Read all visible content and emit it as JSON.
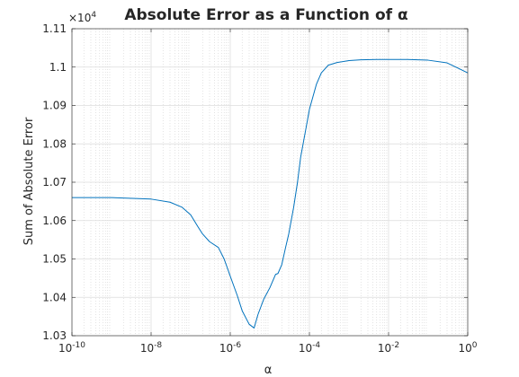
{
  "chart_data": {
    "type": "line",
    "title": "Absolute Error as a Function of α",
    "xlabel": "α",
    "ylabel": "Sum of Absolute Error",
    "xscale": "log",
    "xlim": [
      1e-10,
      1
    ],
    "ylim": [
      1.03,
      1.11
    ],
    "y_multiplier_label": "×10",
    "y_multiplier_exponent": "4",
    "grid": true,
    "minor_grid": true,
    "line_color": "#0072bd",
    "x_ticks": [
      {
        "value": 1e-10,
        "base": "10",
        "exp": "-10"
      },
      {
        "value": 1e-08,
        "base": "10",
        "exp": "-8"
      },
      {
        "value": 1e-06,
        "base": "10",
        "exp": "-6"
      },
      {
        "value": 0.0001,
        "base": "10",
        "exp": "-4"
      },
      {
        "value": 0.01,
        "base": "10",
        "exp": "-2"
      },
      {
        "value": 1,
        "base": "10",
        "exp": "0"
      }
    ],
    "y_ticks": [
      {
        "value": 1.03,
        "label": "1.03"
      },
      {
        "value": 1.04,
        "label": "1.04"
      },
      {
        "value": 1.05,
        "label": "1.05"
      },
      {
        "value": 1.06,
        "label": "1.06"
      },
      {
        "value": 1.07,
        "label": "1.07"
      },
      {
        "value": 1.08,
        "label": "1.08"
      },
      {
        "value": 1.09,
        "label": "1.09"
      },
      {
        "value": 1.1,
        "label": "1.1"
      },
      {
        "value": 1.11,
        "label": "1.11"
      }
    ],
    "series": [
      {
        "x": [
          1e-10,
          1e-09,
          1e-08,
          3e-08,
          6e-08,
          1e-07,
          1.5e-07,
          2e-07,
          3e-07,
          5e-07,
          7e-07,
          1e-06,
          1.5e-06,
          2e-06,
          3e-06,
          4e-06,
          5e-06,
          7e-06,
          1e-05,
          1.4e-05,
          1.6e-05,
          2e-05,
          2.5e-05,
          3e-05,
          4e-05,
          5e-05,
          6e-05,
          8e-05,
          0.0001,
          0.00015,
          0.0002,
          0.0003,
          0.0005,
          0.001,
          0.002,
          0.005,
          0.01,
          0.03,
          0.1,
          0.3,
          1
        ],
        "y": [
          1.066,
          1.066,
          1.0656,
          1.0648,
          1.0635,
          1.0615,
          1.0585,
          1.0565,
          1.0545,
          1.053,
          1.05,
          1.0455,
          1.0405,
          1.0365,
          1.033,
          1.032,
          1.0355,
          1.0395,
          1.0425,
          1.046,
          1.0462,
          1.0485,
          1.053,
          1.0565,
          1.0635,
          1.07,
          1.0765,
          1.0835,
          1.089,
          1.0955,
          1.0985,
          1.1005,
          1.1012,
          1.1017,
          1.1019,
          1.102,
          1.102,
          1.102,
          1.1018,
          1.1011,
          1.0985
        ]
      }
    ]
  }
}
